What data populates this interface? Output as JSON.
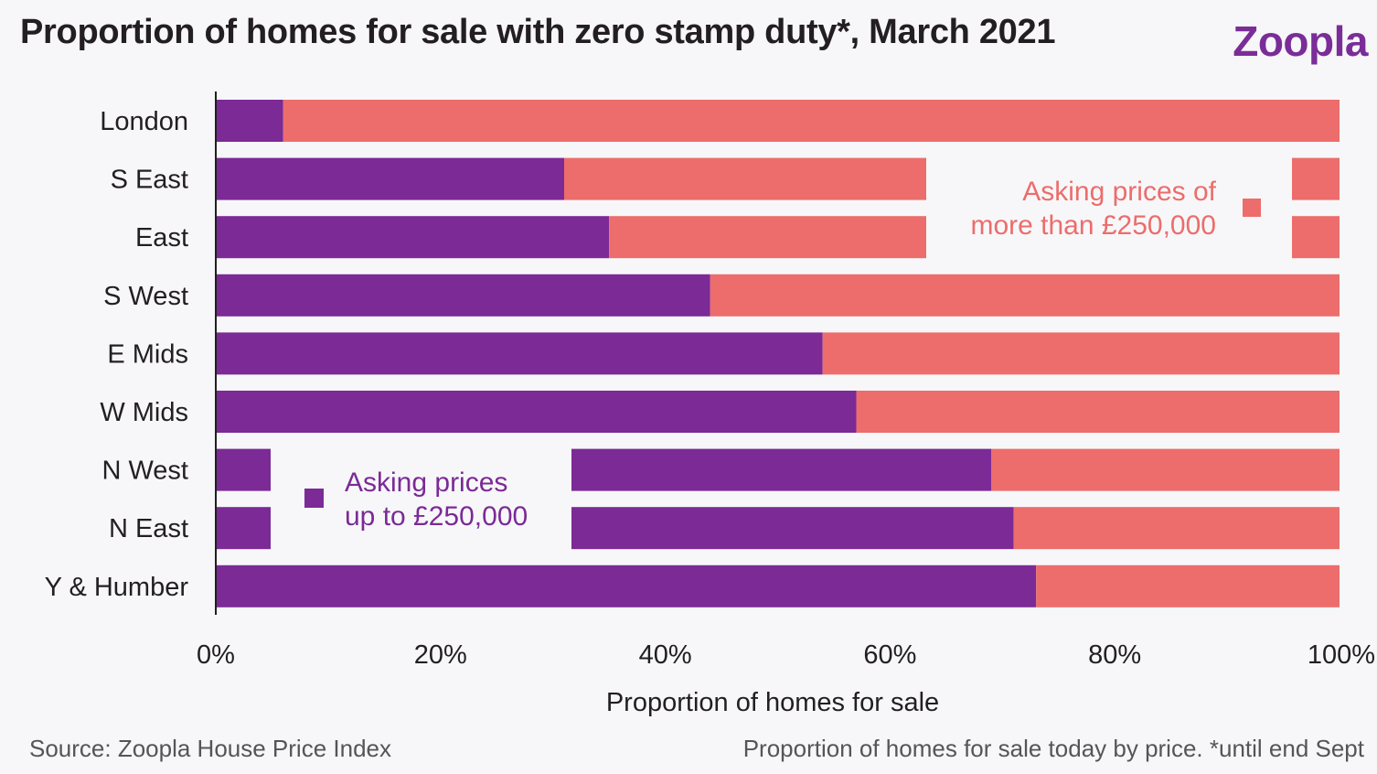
{
  "brand": {
    "name": "Zoopla"
  },
  "footer": {
    "source": "Source: Zoopla House Price Index",
    "note": "Proportion of homes for sale today by price. *until end Sept"
  },
  "colors": {
    "under": "#7b2a96",
    "over": "#ec6d6b",
    "axis": "#231f20",
    "background": "#f7f7f9"
  },
  "chart_data": {
    "type": "bar",
    "orientation": "horizontal",
    "stacked": true,
    "title": "Proportion of homes for sale with zero stamp duty*, March 2021",
    "xlabel": "Proportion of homes for sale",
    "ylabel": "",
    "xlim": [
      0,
      100
    ],
    "x_ticks": [
      0,
      20,
      40,
      60,
      80,
      100
    ],
    "x_tick_labels": [
      "0%",
      "20%",
      "40%",
      "60%",
      "80%",
      "100%"
    ],
    "grid": false,
    "categories": [
      "London",
      "S East",
      "East",
      "S West",
      "E Mids",
      "W Mids",
      "N West",
      "N East",
      "Y & Humber"
    ],
    "series": [
      {
        "name": "Asking prices up to £250,000",
        "legend_lines": [
          "Asking prices",
          "up to £250,000"
        ],
        "color": "#7b2a96",
        "values": [
          6,
          31,
          35,
          44,
          54,
          57,
          69,
          71,
          73
        ]
      },
      {
        "name": "Asking prices of more than £250,000",
        "legend_lines": [
          "Asking prices of",
          "more than £250,000"
        ],
        "color": "#ec6d6b",
        "values": [
          94,
          69,
          65,
          56,
          46,
          43,
          31,
          29,
          27
        ]
      }
    ]
  }
}
